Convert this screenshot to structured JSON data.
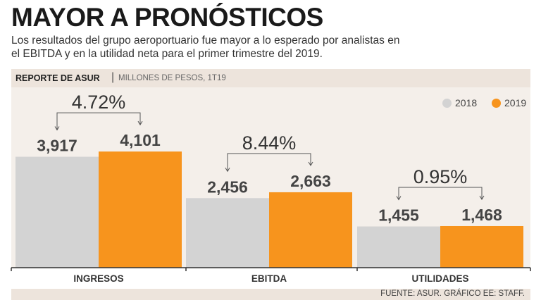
{
  "title": "MAYOR A PRONÓSTICOS",
  "subtitle": "Los resultados del grupo aeroportuario fue mayor a lo esperado por analistas en el EBITDA y en la utilidad neta para el primer trimestre del 2019.",
  "header": {
    "report": "REPORTE DE ASUR",
    "separator": "|",
    "units": "MILLONES DE PESOS, 1T19"
  },
  "footer": "FUENTE: ASUR. GRÁFICO EE: STAFF.",
  "colors": {
    "y2018": "#d3d3d3",
    "y2019": "#f7941d",
    "label_value": "#444444"
  },
  "chart_data": {
    "type": "bar",
    "categories": [
      "INGRESOS",
      "EBITDA",
      "UTILIDADES"
    ],
    "series": [
      {
        "name": "2018",
        "values": [
          3917,
          2456,
          1455
        ]
      },
      {
        "name": "2019",
        "values": [
          4101,
          2663,
          1468
        ]
      }
    ],
    "value_labels": {
      "2018": [
        "3,917",
        "2,456",
        "1,455"
      ],
      "2019": [
        "4,101",
        "2,663",
        "1,468"
      ]
    },
    "annotations": [
      "4.72%",
      "8.44%",
      "0.95%"
    ],
    "legend_position": "top-right",
    "grid": false
  }
}
